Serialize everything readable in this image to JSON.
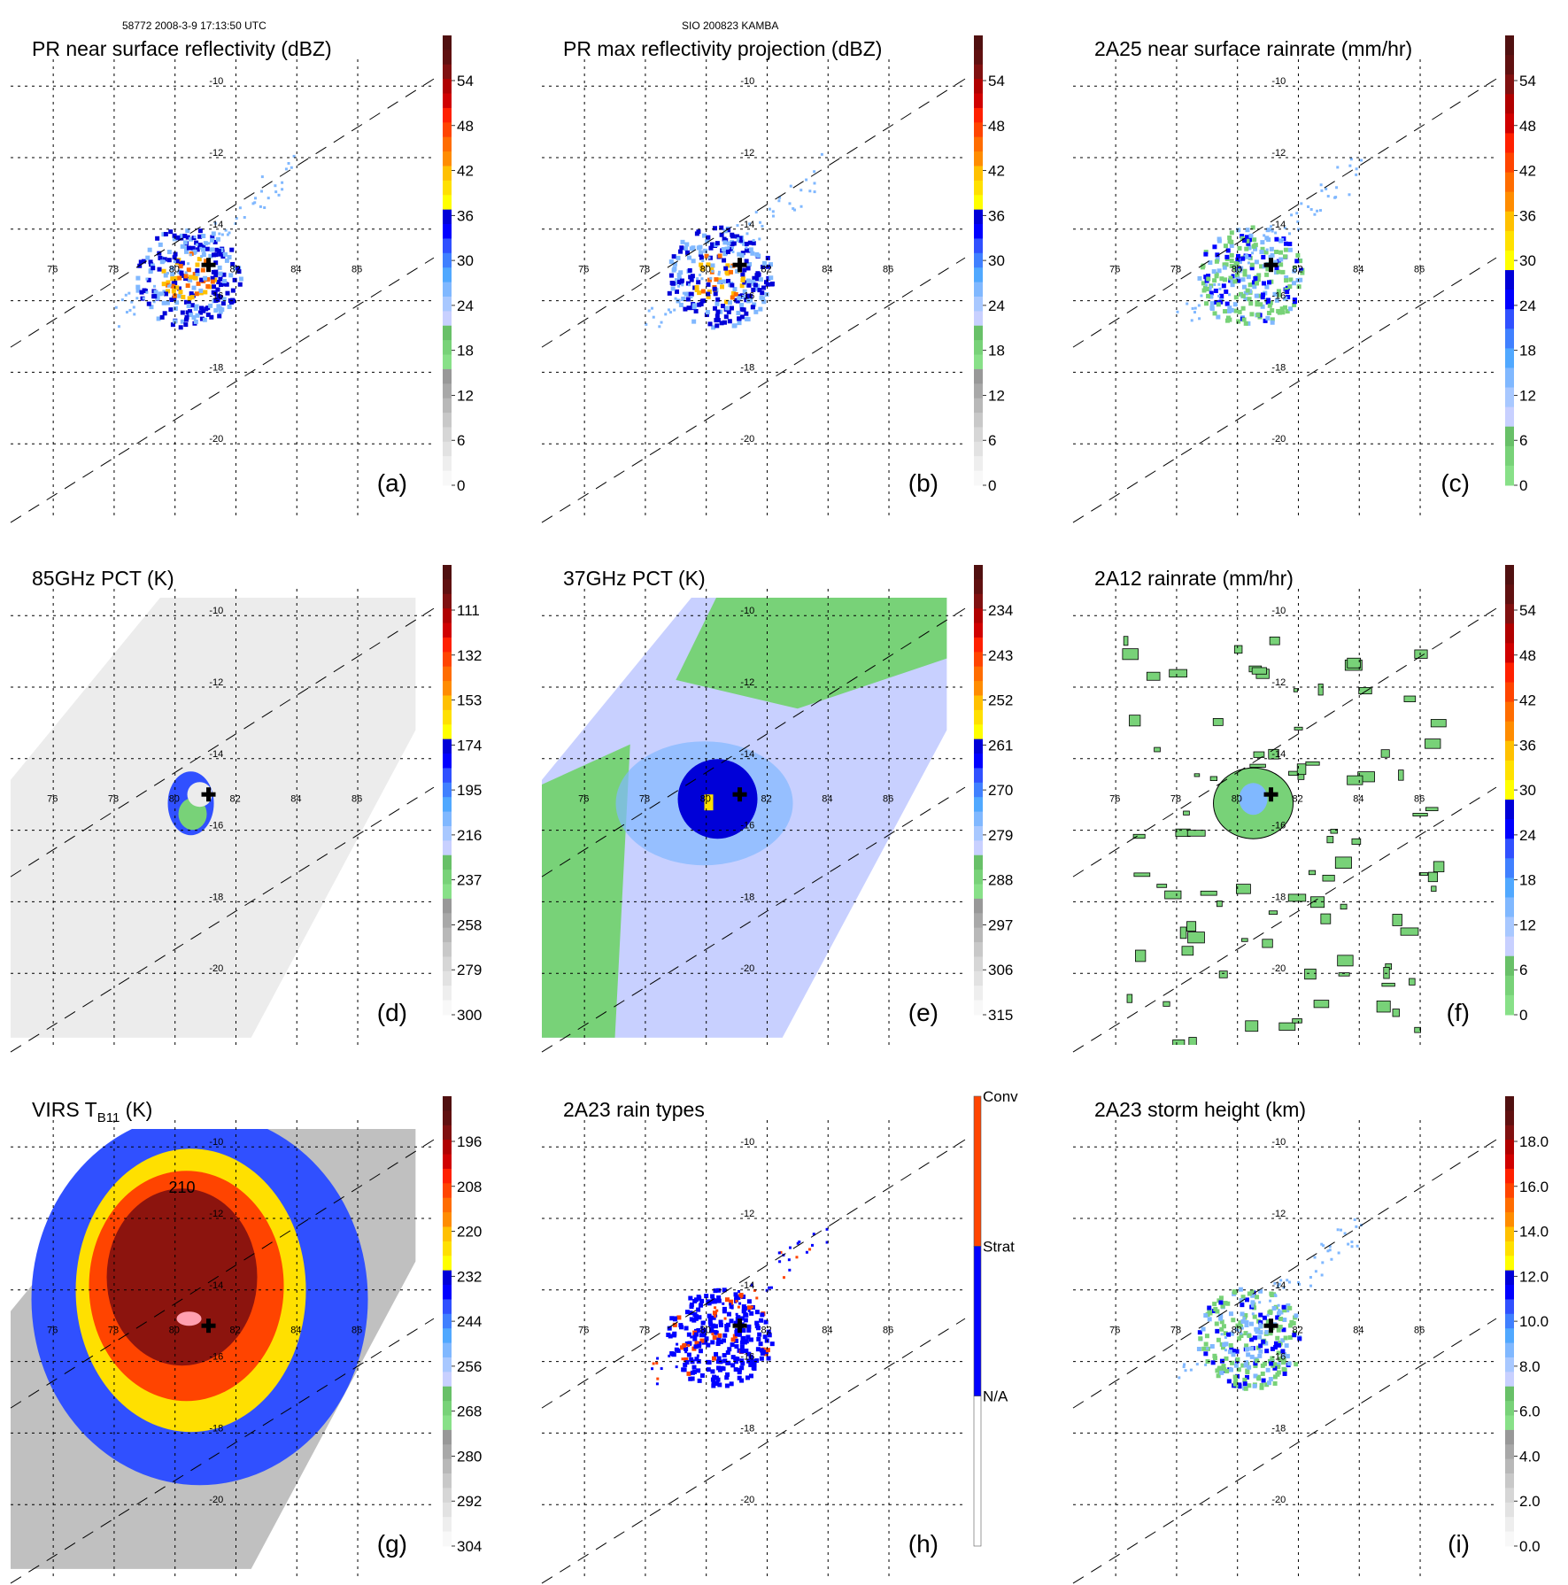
{
  "header": {
    "left": "58772 2008-3-9 17:13:50 UTC",
    "center": "SIO 200823 KAMBA"
  },
  "map": {
    "lon_ticks": [
      "76",
      "78",
      "80",
      "82",
      "84",
      "86"
    ],
    "lat_ticks": [
      "-10",
      "-12",
      "-14",
      "-16",
      "-18",
      "-20"
    ],
    "storm_center": {
      "lon": 81.1,
      "lat": -15.0,
      "marker": "plus-icon"
    },
    "swath_edges": "dashed diagonal lines"
  },
  "palette": {
    "colors": [
      "#f8f8f8",
      "#eeeeee",
      "#e2e2e2",
      "#d6d6d6",
      "#c8c8c8",
      "#b8b8b8",
      "#a8a8a8",
      "#989898",
      "#88e088",
      "#78d278",
      "#68c068",
      "#c8d0ff",
      "#a8c8ff",
      "#80b8ff",
      "#50a8ff",
      "#4080ff",
      "#3050ff",
      "#0000ff",
      "#0000d8",
      "#ffff00",
      "#ffe000",
      "#ffc000",
      "#ff8c00",
      "#ff6c00",
      "#ff4400",
      "#ff2000",
      "#d00000",
      "#b00000",
      "#801010",
      "#601010",
      "#501010"
    ]
  },
  "chart_data": [
    {
      "id": "a",
      "type": "heatmap",
      "label": "(a)",
      "title": "PR near surface reflectivity (dBZ)",
      "colorbar": {
        "ticks": [
          "54",
          "48",
          "42",
          "36",
          "30",
          "24",
          "18",
          "12",
          "6",
          "0"
        ],
        "range": [
          0,
          60
        ],
        "scheme": "standard"
      },
      "field": "swath",
      "intensity": "medium"
    },
    {
      "id": "b",
      "type": "heatmap",
      "label": "(b)",
      "title": "PR max reflectivity projection (dBZ)",
      "colorbar": {
        "ticks": [
          "54",
          "48",
          "42",
          "36",
          "30",
          "24",
          "18",
          "12",
          "6",
          "0"
        ],
        "range": [
          0,
          60
        ],
        "scheme": "standard"
      },
      "field": "swath",
      "intensity": "medium"
    },
    {
      "id": "c",
      "type": "heatmap",
      "label": "(c)",
      "title": "2A25 near surface rainrate (mm/hr)",
      "colorbar": {
        "ticks": [
          "54",
          "48",
          "42",
          "36",
          "30",
          "24",
          "18",
          "12",
          "6",
          "0"
        ],
        "range": [
          0,
          60
        ],
        "scheme": "rain"
      },
      "field": "swath",
      "intensity": "low"
    },
    {
      "id": "d",
      "type": "heatmap",
      "label": "(d)",
      "title": "85GHz PCT (K)",
      "colorbar": {
        "ticks": [
          "111",
          "132",
          "153",
          "174",
          "195",
          "216",
          "237",
          "258",
          "279",
          "300"
        ],
        "range": [
          300,
          90
        ],
        "scheme": "standard"
      },
      "field": "wide-gray",
      "intensity": "low"
    },
    {
      "id": "e",
      "type": "heatmap",
      "label": "(e)",
      "title": "37GHz PCT (K)",
      "colorbar": {
        "ticks": [
          "234",
          "243",
          "252",
          "261",
          "270",
          "279",
          "288",
          "297",
          "306",
          "315"
        ],
        "range": [
          315,
          225
        ],
        "scheme": "standard"
      },
      "field": "wide-green",
      "intensity": "low"
    },
    {
      "id": "f",
      "type": "heatmap",
      "label": "(f)",
      "title": "2A12 rainrate (mm/hr)",
      "colorbar": {
        "ticks": [
          "54",
          "48",
          "42",
          "36",
          "30",
          "24",
          "18",
          "12",
          "6",
          "0"
        ],
        "range": [
          0,
          60
        ],
        "scheme": "rain"
      },
      "field": "wide-sparse",
      "intensity": "low"
    },
    {
      "id": "g",
      "type": "heatmap",
      "label": "(g)",
      "title_main": "VIRS T",
      "title_sub": "B11",
      "title_tail": " (K)",
      "contour_label": "210",
      "colorbar": {
        "ticks": [
          "196",
          "208",
          "220",
          "232",
          "244",
          "256",
          "268",
          "280",
          "292",
          "304"
        ],
        "range": [
          304,
          184
        ],
        "scheme": "standard"
      },
      "field": "virs",
      "intensity": "high"
    },
    {
      "id": "h",
      "type": "heatmap",
      "label": "(h)",
      "title": "2A23 rain types",
      "colorbar": {
        "categories": [
          "Conv",
          "Strat",
          "N/A"
        ],
        "colors": [
          "#ff4400",
          "#0000ff",
          "#ffffff"
        ],
        "scheme": "categorical"
      },
      "field": "swath",
      "intensity": "categorical"
    },
    {
      "id": "i",
      "type": "heatmap",
      "label": "(i)",
      "title": "2A23 storm height (km)",
      "colorbar": {
        "ticks": [
          "18.0",
          "16.0",
          "14.0",
          "12.0",
          "10.0",
          "8.0",
          "6.0",
          "4.0",
          "2.0",
          "0.0"
        ],
        "range": [
          0,
          20
        ],
        "scheme": "standard"
      },
      "field": "swath",
      "intensity": "low"
    }
  ]
}
